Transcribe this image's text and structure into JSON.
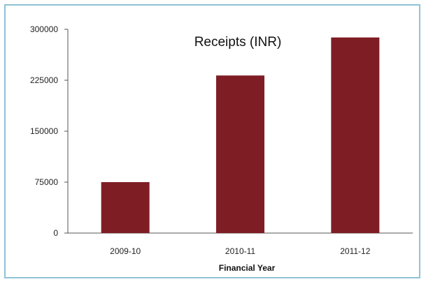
{
  "chart_data": {
    "type": "bar",
    "title": "Receipts (INR)",
    "xlabel": "Financial Year",
    "ylabel": "",
    "categories": [
      "2009-10",
      "2010-11",
      "2011-12"
    ],
    "values": [
      75000,
      232000,
      288000
    ],
    "ylim": [
      0,
      300000
    ],
    "yticks": [
      0,
      75000,
      150000,
      225000,
      300000
    ],
    "bar_color": "#7f1d25",
    "axis_color": "#555555",
    "grid": false,
    "legend": "none"
  }
}
